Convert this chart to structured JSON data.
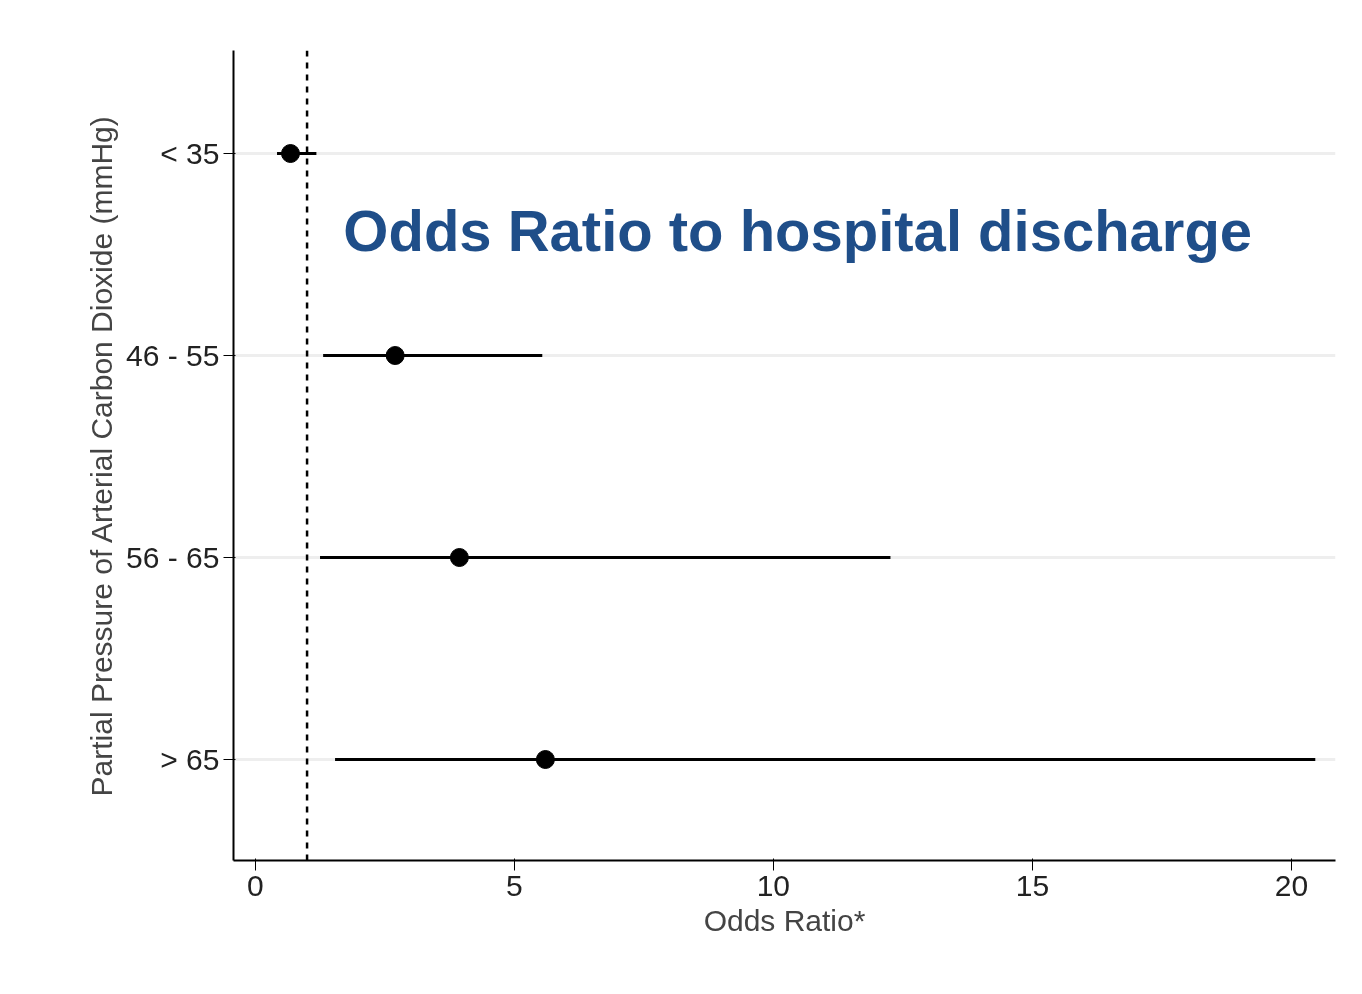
{
  "chart_data": {
    "type": "scatter",
    "orientation": "horizontal",
    "title": "Odds Ratio to hospital discharge",
    "xlabel": "Odds Ratio*",
    "ylabel": "Partial Pressure of Arterial Carbon Dioxide (mmHg)",
    "categories": [
      "< 35",
      "46 - 55",
      "56 - 65",
      "> 65"
    ],
    "values": [
      0.68,
      2.7,
      3.94,
      5.6
    ],
    "errors": [
      [
        0.42,
        1.18
      ],
      [
        1.31,
        5.54
      ],
      [
        1.25,
        12.26
      ],
      [
        1.54,
        20.46
      ]
    ],
    "color": "#000000",
    "marker": "circle",
    "grid": "y",
    "xlim": [
      -0.42,
      20.85
    ],
    "xticks": [
      0,
      5,
      10,
      15,
      20
    ],
    "ref_lines": [
      {
        "axis": "x",
        "value": 1,
        "line_style": "dashed",
        "color": "#000000"
      }
    ]
  }
}
